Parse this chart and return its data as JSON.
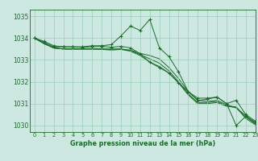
{
  "bg_color": "#cce8e0",
  "grid_color": "#99ccbb",
  "line_color": "#1a6b2a",
  "title": "Graphe pression niveau de la mer (hPa)",
  "xlim": [
    -0.5,
    23
  ],
  "ylim": [
    1029.7,
    1035.3
  ],
  "yticks": [
    1030,
    1031,
    1032,
    1033,
    1034,
    1035
  ],
  "xticks": [
    0,
    1,
    2,
    3,
    4,
    5,
    6,
    7,
    8,
    9,
    10,
    11,
    12,
    13,
    14,
    15,
    16,
    17,
    18,
    19,
    20,
    21,
    22,
    23
  ],
  "series": [
    {
      "x": [
        0,
        1,
        2,
        3,
        4,
        5,
        6,
        7,
        8,
        9,
        10,
        11,
        12,
        13,
        14,
        15,
        16,
        17,
        18,
        19,
        20,
        21,
        22,
        23
      ],
      "y": [
        1034.0,
        1033.85,
        1033.65,
        1033.6,
        1033.6,
        1033.6,
        1033.65,
        1033.65,
        1033.7,
        1034.1,
        1034.55,
        1034.35,
        1034.85,
        1033.55,
        1033.15,
        1032.45,
        1031.55,
        1031.15,
        1031.2,
        1031.3,
        1031.0,
        1031.15,
        1030.5,
        1030.2
      ],
      "marker": "+"
    },
    {
      "x": [
        0,
        1,
        2,
        3,
        4,
        5,
        6,
        7,
        8,
        9,
        10,
        11,
        12,
        13,
        14,
        15,
        16,
        17,
        18,
        19,
        20,
        21,
        22,
        23
      ],
      "y": [
        1034.0,
        1033.75,
        1033.55,
        1033.5,
        1033.5,
        1033.5,
        1033.5,
        1033.5,
        1033.5,
        1033.5,
        1033.45,
        1033.3,
        1033.2,
        1033.05,
        1032.65,
        1032.15,
        1031.55,
        1031.15,
        1031.1,
        1031.15,
        1030.95,
        1030.8,
        1030.45,
        1030.1
      ],
      "marker": null
    },
    {
      "x": [
        0,
        1,
        2,
        3,
        4,
        5,
        6,
        7,
        8,
        9,
        10,
        11,
        12,
        13,
        14,
        15,
        16,
        17,
        18,
        19,
        20,
        21,
        22,
        23
      ],
      "y": [
        1034.0,
        1033.75,
        1033.55,
        1033.5,
        1033.5,
        1033.5,
        1033.5,
        1033.5,
        1033.48,
        1033.5,
        1033.42,
        1033.25,
        1033.05,
        1032.85,
        1032.5,
        1032.0,
        1031.45,
        1031.05,
        1031.05,
        1031.1,
        1030.9,
        1030.85,
        1030.38,
        1030.08
      ],
      "marker": null
    },
    {
      "x": [
        0,
        1,
        2,
        3,
        4,
        5,
        6,
        7,
        8,
        9,
        10,
        11,
        12,
        13,
        14,
        15,
        16,
        17,
        18,
        19,
        20,
        21,
        22,
        23
      ],
      "y": [
        1034.0,
        1033.75,
        1033.55,
        1033.5,
        1033.5,
        1033.5,
        1033.5,
        1033.48,
        1033.45,
        1033.48,
        1033.4,
        1033.2,
        1032.9,
        1032.7,
        1032.4,
        1031.95,
        1031.4,
        1031.0,
        1031.0,
        1031.05,
        1030.88,
        1030.82,
        1030.32,
        1030.03
      ],
      "marker": null
    },
    {
      "x": [
        0,
        1,
        2,
        3,
        4,
        5,
        6,
        7,
        8,
        9,
        10,
        11,
        12,
        13,
        14,
        15,
        16,
        17,
        18,
        19,
        20,
        21,
        22,
        23
      ],
      "y": [
        1034.0,
        1033.8,
        1033.6,
        1033.6,
        1033.6,
        1033.58,
        1033.6,
        1033.62,
        1033.58,
        1033.62,
        1033.55,
        1033.28,
        1032.9,
        1032.65,
        1032.4,
        1031.95,
        1031.55,
        1031.25,
        1031.25,
        1031.3,
        1031.0,
        1030.0,
        1030.42,
        1030.15
      ],
      "marker": "+"
    }
  ]
}
